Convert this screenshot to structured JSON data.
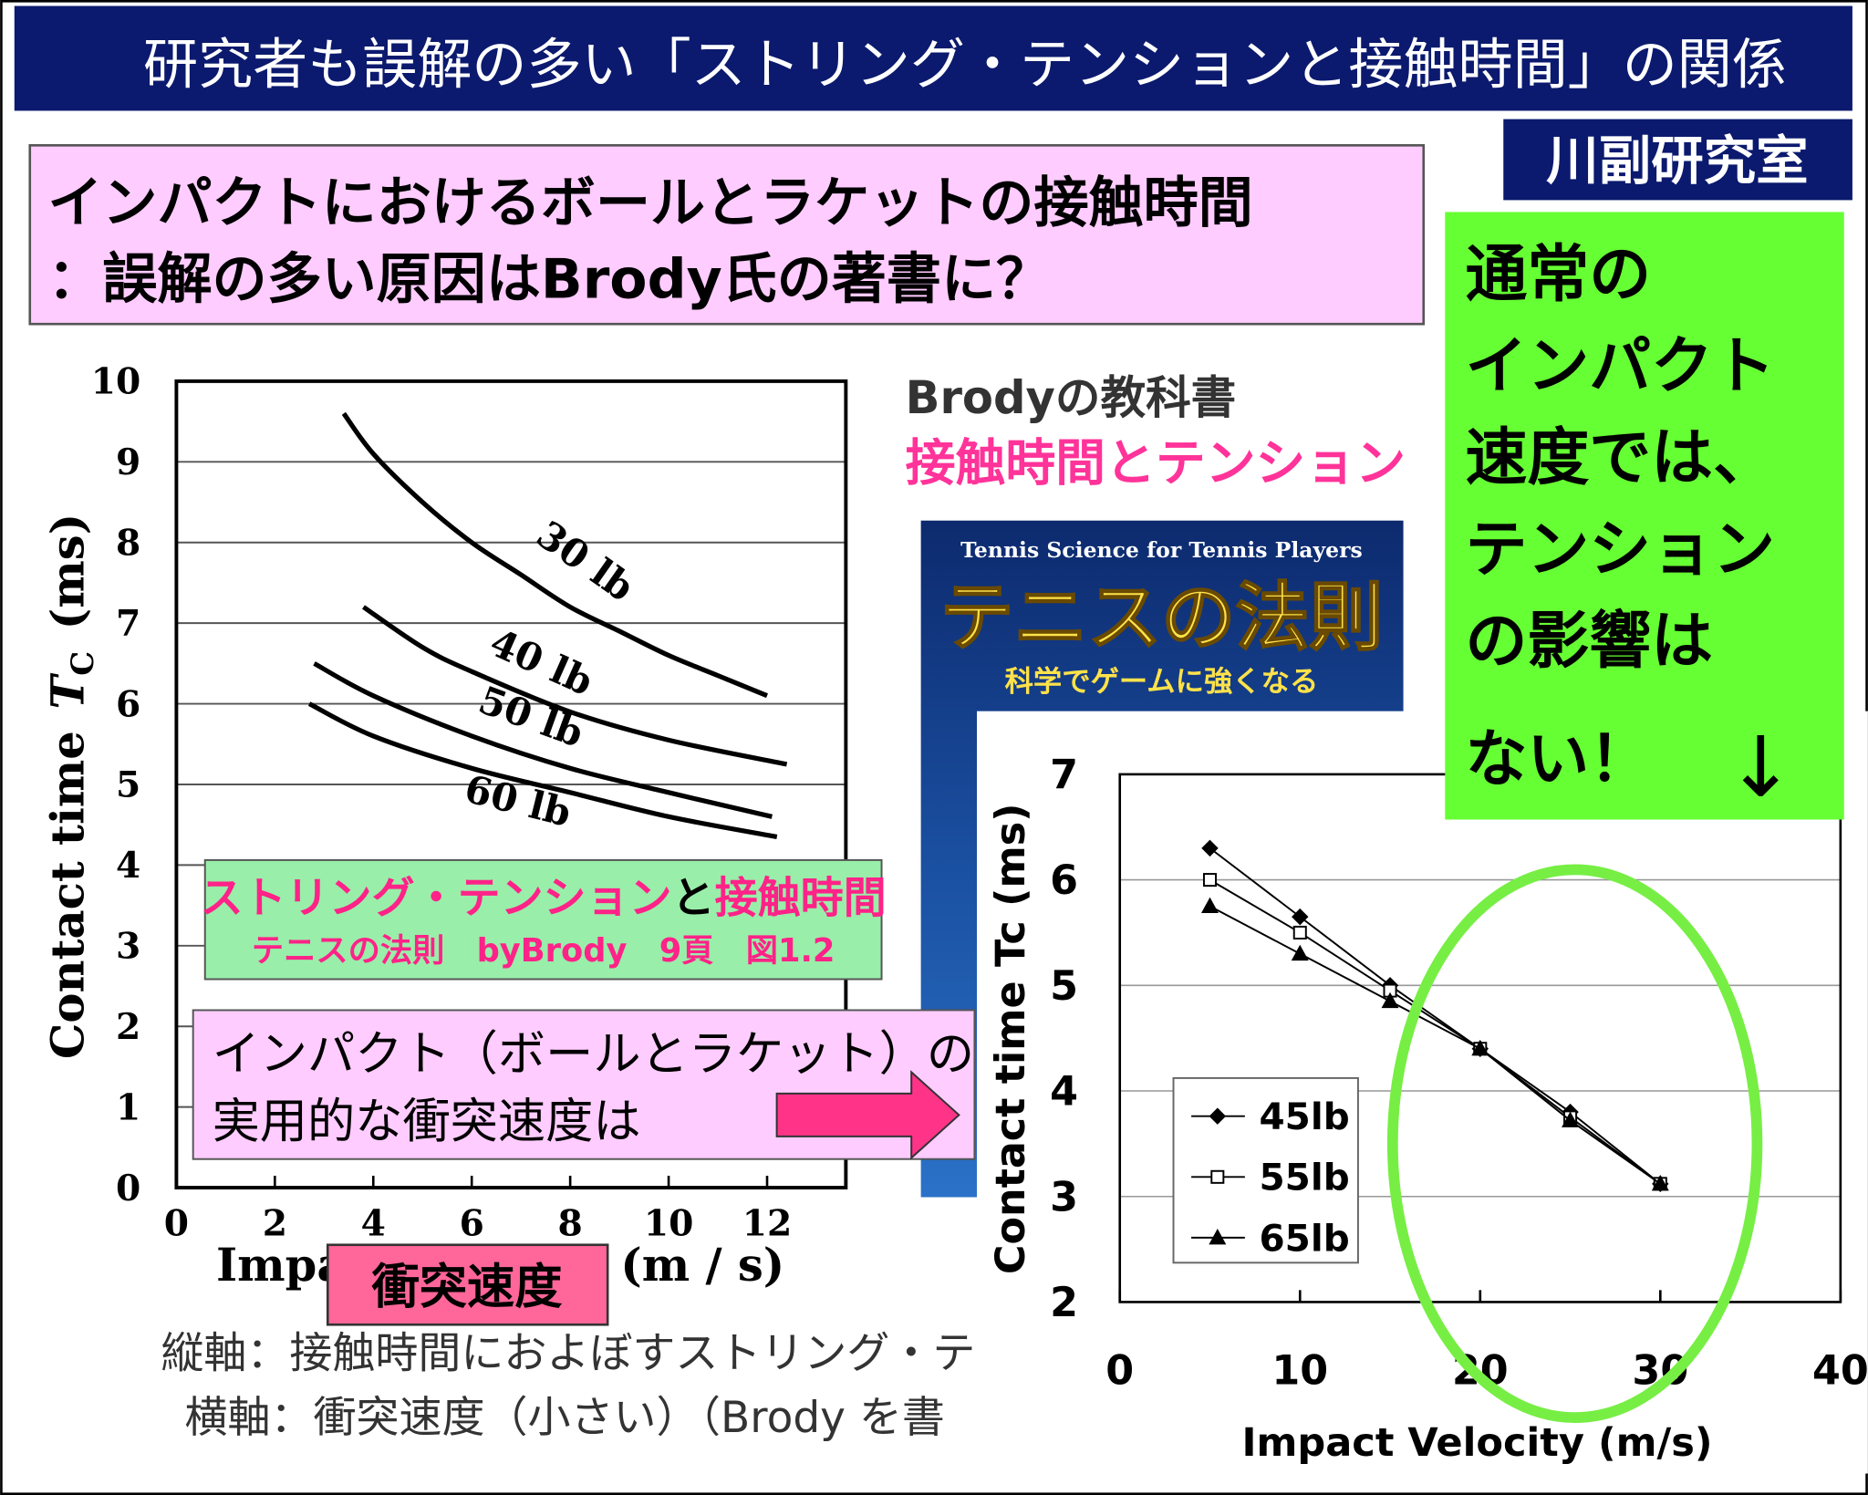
{
  "header": {
    "title": "研究者も誤解の多い「ストリング・テンションと接触時間」の関係"
  },
  "lab": "川副研究室",
  "headline": {
    "lines": [
      "インパクトにおけるボールとラケットの接触時間",
      "：誤解の多い原因はBrody氏の著書に？"
    ]
  },
  "note": {
    "lines": [
      "通常の",
      "インパクト",
      "速度では、",
      "テンション",
      "の影響は",
      "ない！"
    ],
    "arrow": "↓"
  },
  "book": {
    "heading": "Brodyの教科書",
    "subheading": "接触時間とテンション",
    "cover_subtitle": "Tennis Science for Tennis Players",
    "cover_title": "テニスの法則",
    "cover_tagline": "科学でゲームに強くなる"
  },
  "caption": {
    "pink1": "ストリング・テンション",
    "joiner": "と",
    "pink2": "接触時間",
    "source": "テニスの法則　byBrody　9頁　図1.2"
  },
  "callout": {
    "lines": [
      "インパクト（ボールとラケット）の",
      "実用的な衝突速度は"
    ]
  },
  "x_highlight": "衝突速度",
  "axes_note": {
    "lines": [
      "縦軸：接触時間におよぼすストリング・テ",
      "横軸：衝突速度（小さい）（Brody を書"
    ]
  },
  "chart_data": [
    {
      "type": "line",
      "ylabel": "Contact time",
      "ylabel_symbol": "T",
      "ylabel_subscript": "C",
      "ylabel_unit": "(ms)",
      "xlabel": "Impact velocity (m / s)",
      "xlim": [
        0,
        13.6
      ],
      "ylim": [
        0,
        10
      ],
      "xticks": [
        0,
        2,
        4,
        6,
        8,
        10,
        12
      ],
      "yticks": [
        0,
        1,
        2,
        3,
        4,
        5,
        6,
        7,
        8,
        9,
        10
      ],
      "grid": true,
      "color": "#000000",
      "series": [
        {
          "name": "30 lb",
          "x": [
            3.4,
            4,
            5,
            6,
            7,
            8,
            9,
            10,
            11,
            12
          ],
          "values": [
            9.6,
            9.1,
            8.5,
            8.0,
            7.6,
            7.2,
            6.9,
            6.6,
            6.35,
            6.1
          ]
        },
        {
          "name": "40 lb",
          "x": [
            3.8,
            5,
            6,
            8,
            10,
            12.4
          ],
          "values": [
            7.2,
            6.7,
            6.4,
            5.9,
            5.55,
            5.25
          ]
        },
        {
          "name": "50 lb",
          "x": [
            2.8,
            4,
            6,
            8,
            10,
            12.1
          ],
          "values": [
            6.5,
            6.1,
            5.6,
            5.2,
            4.9,
            4.6
          ]
        },
        {
          "name": "60 lb",
          "x": [
            2.7,
            4,
            6,
            8,
            10,
            12.2
          ],
          "values": [
            6.0,
            5.6,
            5.2,
            4.9,
            4.6,
            4.35
          ]
        }
      ]
    },
    {
      "type": "line",
      "markers": true,
      "ylabel": "Contact time Tc (ms)",
      "xlabel": "Impact Velocity (m/s)",
      "xlim": [
        0,
        40
      ],
      "ylim": [
        2,
        7
      ],
      "xticks": [
        0,
        10,
        20,
        30,
        40
      ],
      "yticks": [
        2,
        3,
        4,
        5,
        6,
        7
      ],
      "grid": true,
      "legend": "lower left",
      "x": [
        5,
        10,
        15,
        20,
        25,
        30
      ],
      "series": [
        {
          "name": "45lb",
          "marker": "diamond",
          "color": "#000000",
          "values": [
            6.3,
            5.65,
            5.0,
            4.4,
            3.8,
            3.12
          ]
        },
        {
          "name": "55lb",
          "marker": "square",
          "color": "#000000",
          "values": [
            6.0,
            5.5,
            4.95,
            4.4,
            3.75,
            3.12
          ]
        },
        {
          "name": "65lb",
          "marker": "triangle",
          "color": "#000000",
          "values": [
            5.75,
            5.3,
            4.85,
            4.4,
            3.72,
            3.12
          ]
        }
      ]
    }
  ]
}
